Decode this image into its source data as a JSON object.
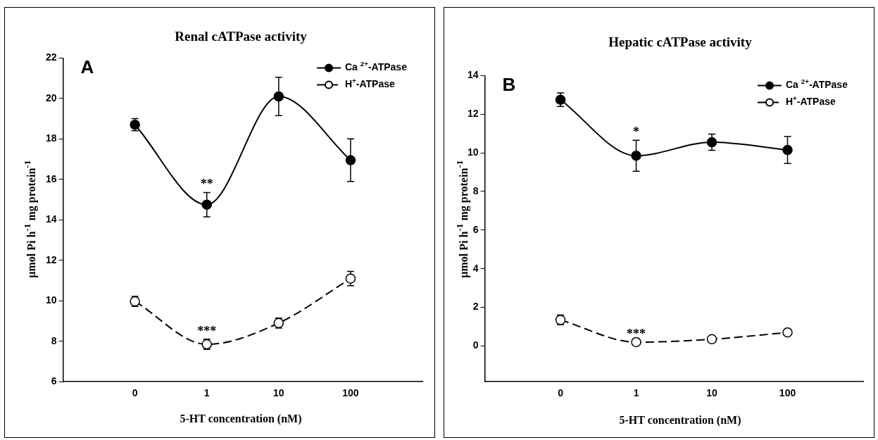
{
  "chart_data": [
    {
      "type": "line",
      "title": "Renal cATPase activity",
      "xlabel": "5-HT concentration (nM)",
      "ylabel": "µmol Pi h$^{-1}$ mg protein$^{-1}$",
      "categories": [
        "0",
        "1",
        "10",
        "100"
      ],
      "ylim": [
        6,
        22
      ],
      "yticks": [
        6,
        8,
        10,
        12,
        14,
        16,
        18,
        20,
        22
      ],
      "grid": false,
      "legend": "top right",
      "marker": "circle",
      "series": [
        {
          "name": "Ca $^{2+}$-ATPase",
          "color": "#000000",
          "line_style": "solid",
          "values": [
            18.7,
            14.75,
            20.1,
            16.95
          ],
          "errors": [
            0.3,
            0.6,
            0.95,
            1.05
          ]
        },
        {
          "name": "H$^{+}$-ATPase",
          "color": "#000000",
          "line_style": "dashed",
          "values": [
            9.97,
            7.85,
            8.9,
            11.1
          ],
          "errors": [
            0.25,
            0.25,
            0.25,
            0.35
          ]
        }
      ],
      "annotations": [
        "A",
        "**",
        "***"
      ]
    },
    {
      "type": "line",
      "title": "Hepatic cATPase activity",
      "xlabel": "5-HT concentration (nM)",
      "ylabel": "µmol Pi h$^{-1}$ mg protein$^{-1}$",
      "categories": [
        "0",
        "1",
        "10",
        "100"
      ],
      "ylim": [
        -1.85,
        14
      ],
      "yticks": [
        0,
        2,
        4,
        6,
        8,
        10,
        12,
        14
      ],
      "grid": false,
      "legend": "top right",
      "marker": "circle",
      "series": [
        {
          "name": "Ca $^{2+}$-ATPase",
          "color": "#000000",
          "line_style": "solid",
          "values": [
            12.75,
            9.85,
            10.55,
            10.15
          ],
          "errors": [
            0.35,
            0.8,
            0.42,
            0.7
          ]
        },
        {
          "name": "H$^{+}$-ATPase",
          "color": "#000000",
          "line_style": "dashed",
          "values": [
            1.35,
            0.2,
            0.35,
            0.7
          ],
          "errors": [
            0.25,
            null,
            null,
            null
          ]
        }
      ],
      "annotations": [
        "B",
        "*",
        "***"
      ]
    }
  ]
}
